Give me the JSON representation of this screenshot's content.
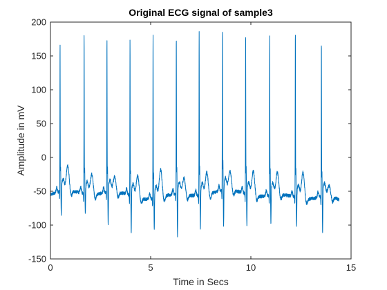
{
  "chart_data": {
    "type": "line",
    "title": "Original ECG signal of sample3",
    "xlabel": "Time in Secs",
    "ylabel": "Amplitude in mV",
    "xlim": [
      0,
      15
    ],
    "ylim": [
      -150,
      200
    ],
    "xticks": [
      0,
      5,
      10,
      15
    ],
    "xtick_labels": [
      "0",
      "5",
      "10",
      "15"
    ],
    "yticks": [
      -150,
      -100,
      -50,
      0,
      50,
      100,
      150,
      200
    ],
    "ytick_labels": [
      "-150",
      "-100",
      "-50",
      "0",
      "50",
      "100",
      "150",
      "200"
    ],
    "grid": false,
    "line_color": "#0072BD",
    "series": [
      {
        "name": "ECG sample3",
        "x_start": 0.0,
        "x_end": 14.4,
        "baseline": -55,
        "beats": [
          {
            "t": 0.48,
            "peak": 168,
            "s": -92,
            "t_wave": -12
          },
          {
            "t": 1.68,
            "peak": 182,
            "s": -88,
            "t_wave": -25
          },
          {
            "t": 2.82,
            "peak": 174,
            "s": -104,
            "t_wave": -28
          },
          {
            "t": 3.97,
            "peak": 174,
            "s": -118,
            "t_wave": -27
          },
          {
            "t": 5.12,
            "peak": 180,
            "s": -110,
            "t_wave": -18
          },
          {
            "t": 6.28,
            "peak": 180,
            "s": -122,
            "t_wave": -30
          },
          {
            "t": 7.42,
            "peak": 186,
            "s": -110,
            "t_wave": -22
          },
          {
            "t": 8.58,
            "peak": 190,
            "s": -108,
            "t_wave": -20
          },
          {
            "t": 9.74,
            "peak": 183,
            "s": -105,
            "t_wave": -20
          },
          {
            "t": 10.94,
            "peak": 182,
            "s": -105,
            "t_wave": -22
          },
          {
            "t": 12.22,
            "peak": 188,
            "s": -108,
            "t_wave": -22
          },
          {
            "t": 13.52,
            "peak": 170,
            "s": -115,
            "t_wave": -42
          }
        ],
        "end_value": -72
      }
    ]
  }
}
